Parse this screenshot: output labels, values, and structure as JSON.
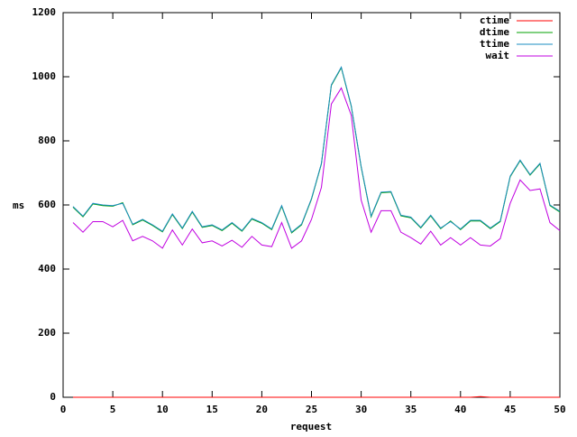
{
  "chart_data": {
    "type": "line",
    "xlabel": "request",
    "ylabel": "ms",
    "x": [
      1,
      2,
      3,
      4,
      5,
      6,
      7,
      8,
      9,
      10,
      11,
      12,
      13,
      14,
      15,
      16,
      17,
      18,
      19,
      20,
      21,
      22,
      23,
      24,
      25,
      26,
      27,
      28,
      29,
      30,
      31,
      32,
      33,
      34,
      35,
      36,
      37,
      38,
      39,
      40,
      41,
      42,
      43,
      44,
      45,
      46,
      47,
      48,
      49,
      50
    ],
    "xlim": [
      0,
      50
    ],
    "xticks": [
      0,
      5,
      10,
      15,
      20,
      25,
      30,
      35,
      40,
      45,
      50
    ],
    "ylim": [
      0,
      1200
    ],
    "yticks": [
      0,
      200,
      400,
      600,
      800,
      1000,
      1200
    ],
    "legend": "top-right",
    "series": [
      {
        "name": "ctime",
        "color": "#ff0000",
        "values": [
          0,
          0,
          0,
          0,
          0,
          0,
          0,
          0,
          0,
          0,
          0,
          0,
          0,
          0,
          0,
          0,
          0,
          0,
          0,
          0,
          0,
          0,
          0,
          0,
          0,
          0,
          0,
          0,
          0,
          0,
          0,
          0,
          0,
          0,
          0,
          0,
          0,
          0,
          0,
          0,
          0,
          2,
          0,
          0,
          0,
          0,
          0,
          0,
          0,
          0
        ]
      },
      {
        "name": "dtime",
        "color": "#00a000",
        "values": [
          593,
          563,
          603,
          598,
          596,
          607,
          538,
          553,
          536,
          516,
          570,
          526,
          578,
          530,
          536,
          520,
          543,
          518,
          556,
          543,
          523,
          596,
          513,
          538,
          618,
          728,
          973,
          1028,
          908,
          718,
          563,
          638,
          640,
          566,
          560,
          528,
          566,
          526,
          550,
          523,
          550,
          550,
          526,
          548,
          688,
          738,
          693,
          728,
          598,
          578
        ]
      },
      {
        "name": "ttime",
        "color": "#1a8cc0",
        "values": [
          595,
          565,
          605,
          600,
          598,
          605,
          540,
          555,
          538,
          518,
          572,
          528,
          580,
          532,
          538,
          522,
          545,
          520,
          558,
          545,
          525,
          598,
          515,
          540,
          620,
          730,
          975,
          1030,
          910,
          720,
          565,
          640,
          642,
          568,
          562,
          530,
          568,
          528,
          548,
          525,
          552,
          552,
          528,
          550,
          690,
          740,
          695,
          730,
          600,
          580
        ]
      },
      {
        "name": "wait",
        "color": "#c000e0",
        "values": [
          545,
          515,
          548,
          548,
          532,
          552,
          488,
          502,
          488,
          465,
          522,
          475,
          525,
          482,
          488,
          472,
          490,
          468,
          502,
          475,
          470,
          545,
          465,
          488,
          555,
          655,
          915,
          965,
          880,
          615,
          515,
          582,
          582,
          515,
          498,
          478,
          518,
          475,
          498,
          475,
          498,
          475,
          472,
          495,
          605,
          678,
          645,
          650,
          545,
          520
        ]
      }
    ]
  }
}
